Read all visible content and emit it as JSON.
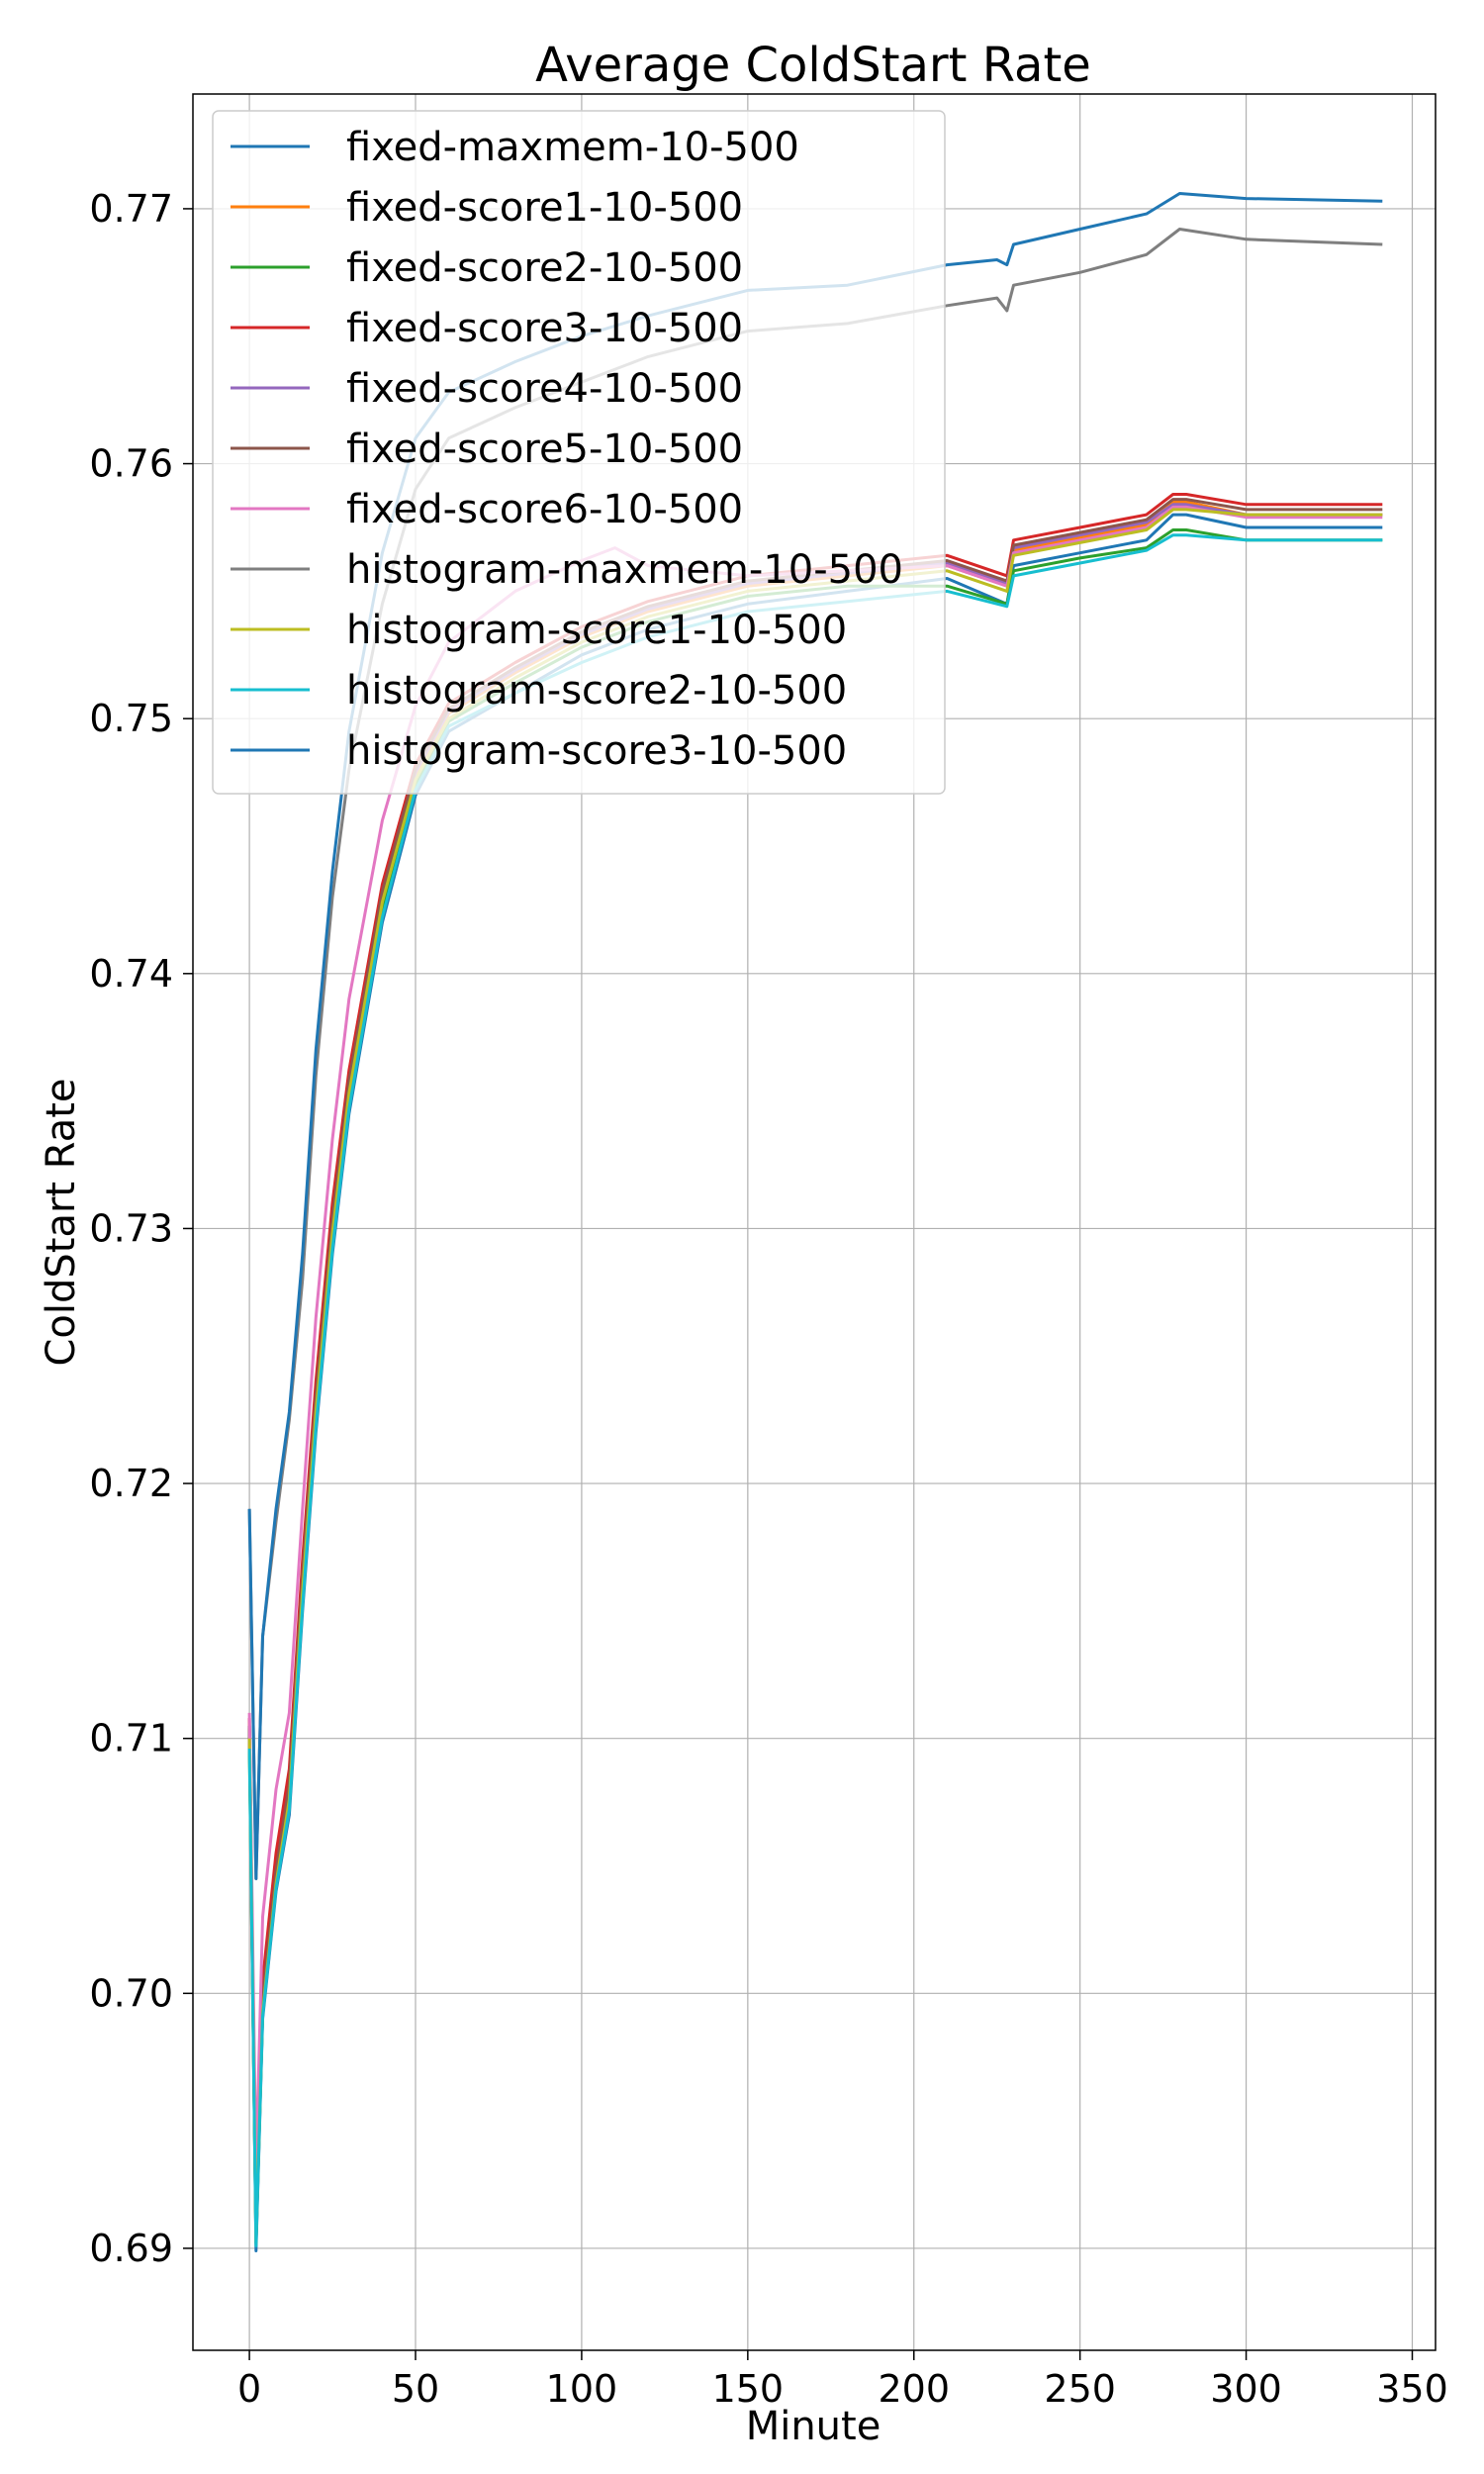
{
  "chart_data": {
    "type": "line",
    "title": "Average ColdStart Rate",
    "xlabel": "Minute",
    "ylabel": "ColdStart Rate",
    "xlim": [
      -17,
      357
    ],
    "ylim": [
      0.686,
      0.7745
    ],
    "xticks": [
      0,
      50,
      100,
      150,
      200,
      250,
      300,
      350
    ],
    "xtick_labels": [
      "0",
      "50",
      "100",
      "150",
      "200",
      "250",
      "300",
      "350"
    ],
    "yticks": [
      0.69,
      0.7,
      0.71,
      0.72,
      0.73,
      0.74,
      0.75,
      0.76,
      0.77
    ],
    "ytick_labels": [
      "0.69",
      "0.70",
      "0.71",
      "0.72",
      "0.73",
      "0.74",
      "0.75",
      "0.76",
      "0.77"
    ],
    "grid": true,
    "legend_position": "upper-left",
    "series": [
      {
        "name": "fixed-maxmem-10-500",
        "color": "#1f77b4",
        "x": [
          0,
          2,
          4,
          8,
          12,
          16,
          20,
          25,
          30,
          40,
          50,
          60,
          80,
          100,
          120,
          150,
          180,
          210,
          228,
          230,
          250,
          270,
          278,
          282,
          300,
          341
        ],
        "y": [
          0.7105,
          0.6899,
          0.699,
          0.704,
          0.707,
          0.715,
          0.722,
          0.729,
          0.7345,
          0.742,
          0.747,
          0.7495,
          0.751,
          0.7525,
          0.7535,
          0.7545,
          0.755,
          0.7555,
          0.7545,
          0.756,
          0.7565,
          0.757,
          0.758,
          0.758,
          0.7575,
          0.7575
        ]
      },
      {
        "name": "fixed-score1-10-500",
        "color": "#ff7f0e",
        "x": [
          0,
          2,
          4,
          8,
          12,
          16,
          20,
          25,
          30,
          40,
          50,
          60,
          80,
          100,
          120,
          150,
          180,
          210,
          228,
          230,
          250,
          270,
          278,
          282,
          300,
          341
        ],
        "y": [
          0.71,
          0.6905,
          0.6995,
          0.7045,
          0.7078,
          0.716,
          0.723,
          0.73,
          0.7355,
          0.743,
          0.7478,
          0.7502,
          0.7518,
          0.7532,
          0.7542,
          0.7552,
          0.7556,
          0.756,
          0.7552,
          0.7566,
          0.7571,
          0.7576,
          0.7585,
          0.7585,
          0.758,
          0.758
        ]
      },
      {
        "name": "fixed-score2-10-500",
        "color": "#2ca02c",
        "x": [
          0,
          2,
          4,
          8,
          12,
          16,
          20,
          25,
          30,
          40,
          50,
          60,
          80,
          100,
          120,
          150,
          180,
          210,
          228,
          230,
          250,
          270,
          278,
          282,
          300,
          341
        ],
        "y": [
          0.7095,
          0.6902,
          0.6992,
          0.7042,
          0.7074,
          0.7155,
          0.7225,
          0.7295,
          0.735,
          0.7425,
          0.7474,
          0.7499,
          0.7514,
          0.7528,
          0.7538,
          0.7548,
          0.7552,
          0.7552,
          0.7545,
          0.7558,
          0.7563,
          0.7567,
          0.7574,
          0.7574,
          0.757,
          0.757
        ]
      },
      {
        "name": "fixed-score3-10-500",
        "color": "#d62728",
        "x": [
          0,
          2,
          4,
          8,
          12,
          16,
          20,
          25,
          30,
          40,
          50,
          60,
          80,
          100,
          120,
          150,
          180,
          210,
          228,
          230,
          250,
          270,
          278,
          282,
          300,
          341
        ],
        "y": [
          0.7108,
          0.691,
          0.7005,
          0.7055,
          0.7088,
          0.717,
          0.724,
          0.731,
          0.7362,
          0.7435,
          0.7482,
          0.7506,
          0.7522,
          0.7536,
          0.7546,
          0.7556,
          0.756,
          0.7564,
          0.7556,
          0.757,
          0.7575,
          0.758,
          0.7588,
          0.7588,
          0.7584,
          0.7584
        ]
      },
      {
        "name": "fixed-score4-10-500",
        "color": "#9467bd",
        "x": [
          0,
          2,
          4,
          8,
          12,
          16,
          20,
          25,
          30,
          40,
          50,
          60,
          80,
          100,
          120,
          150,
          180,
          210,
          228,
          230,
          250,
          270,
          278,
          282,
          300,
          341
        ],
        "y": [
          0.7102,
          0.6904,
          0.6996,
          0.7046,
          0.7079,
          0.7161,
          0.7231,
          0.7301,
          0.7356,
          0.7431,
          0.7479,
          0.7503,
          0.7519,
          0.7533,
          0.7543,
          0.7553,
          0.7557,
          0.7561,
          0.7553,
          0.7567,
          0.7572,
          0.7577,
          0.7584,
          0.7584,
          0.758,
          0.758
        ]
      },
      {
        "name": "fixed-score5-10-500",
        "color": "#8c564b",
        "x": [
          0,
          2,
          4,
          8,
          12,
          16,
          20,
          25,
          30,
          40,
          50,
          60,
          80,
          100,
          120,
          150,
          180,
          210,
          228,
          230,
          250,
          270,
          278,
          282,
          300,
          341
        ],
        "y": [
          0.7104,
          0.6906,
          0.6998,
          0.7048,
          0.7082,
          0.7164,
          0.7234,
          0.7304,
          0.7358,
          0.7432,
          0.748,
          0.7504,
          0.752,
          0.7534,
          0.7544,
          0.7554,
          0.7558,
          0.7562,
          0.7554,
          0.7568,
          0.7573,
          0.7578,
          0.7586,
          0.7586,
          0.7582,
          0.7582
        ]
      },
      {
        "name": "fixed-score6-10-500",
        "color": "#e377c2",
        "x": [
          0,
          2,
          4,
          8,
          12,
          16,
          20,
          25,
          30,
          40,
          50,
          60,
          80,
          100,
          110,
          120,
          150,
          180,
          210,
          228,
          230,
          250,
          270,
          278,
          282,
          300,
          341
        ],
        "y": [
          0.711,
          0.693,
          0.703,
          0.708,
          0.711,
          0.719,
          0.7265,
          0.7335,
          0.739,
          0.746,
          0.7505,
          0.753,
          0.755,
          0.7562,
          0.7567,
          0.756,
          0.7556,
          0.7558,
          0.756,
          0.7552,
          0.7565,
          0.757,
          0.7575,
          0.7583,
          0.7583,
          0.7579,
          0.7579
        ]
      },
      {
        "name": "histogram-maxmem-10-500",
        "color": "#7f7f7f",
        "x": [
          0,
          2,
          4,
          8,
          12,
          16,
          20,
          25,
          30,
          40,
          50,
          60,
          80,
          100,
          120,
          150,
          180,
          210,
          225,
          228,
          230,
          250,
          270,
          280,
          300,
          341
        ],
        "y": [
          0.719,
          0.7045,
          0.714,
          0.7185,
          0.7225,
          0.728,
          0.736,
          0.743,
          0.748,
          0.7545,
          0.759,
          0.761,
          0.7622,
          0.7632,
          0.7642,
          0.7652,
          0.7655,
          0.7662,
          0.7665,
          0.766,
          0.767,
          0.7675,
          0.7682,
          0.7692,
          0.7688,
          0.7686
        ]
      },
      {
        "name": "histogram-score1-10-500",
        "color": "#bcbd22",
        "x": [
          0,
          2,
          4,
          8,
          12,
          16,
          20,
          25,
          30,
          40,
          50,
          60,
          80,
          100,
          120,
          150,
          180,
          210,
          228,
          230,
          250,
          270,
          278,
          282,
          300,
          341
        ],
        "y": [
          0.71,
          0.6903,
          0.6993,
          0.7043,
          0.7076,
          0.7158,
          0.7228,
          0.7298,
          0.7353,
          0.7428,
          0.7476,
          0.75,
          0.7516,
          0.753,
          0.754,
          0.755,
          0.7554,
          0.7558,
          0.755,
          0.7564,
          0.7569,
          0.7574,
          0.7582,
          0.7582,
          0.758,
          0.758
        ]
      },
      {
        "name": "histogram-score2-10-500",
        "color": "#17becf",
        "x": [
          0,
          2,
          4,
          8,
          12,
          16,
          20,
          25,
          30,
          40,
          50,
          60,
          80,
          100,
          120,
          150,
          180,
          210,
          228,
          230,
          250,
          270,
          278,
          282,
          300,
          341
        ],
        "y": [
          0.7096,
          0.6901,
          0.6991,
          0.7041,
          0.7072,
          0.7152,
          0.7222,
          0.7292,
          0.7347,
          0.7422,
          0.7472,
          0.7497,
          0.751,
          0.7522,
          0.7532,
          0.7542,
          0.7546,
          0.755,
          0.7544,
          0.7556,
          0.7561,
          0.7566,
          0.7572,
          0.7572,
          0.757,
          0.757
        ]
      },
      {
        "name": "histogram-score3-10-500",
        "color": "#1f77b4",
        "x": [
          0,
          2,
          4,
          8,
          12,
          16,
          20,
          25,
          30,
          40,
          50,
          60,
          80,
          100,
          120,
          150,
          180,
          210,
          225,
          228,
          230,
          250,
          270,
          280,
          300,
          341
        ],
        "y": [
          0.719,
          0.7045,
          0.714,
          0.719,
          0.7228,
          0.729,
          0.737,
          0.744,
          0.7495,
          0.7565,
          0.761,
          0.7628,
          0.764,
          0.765,
          0.7658,
          0.7668,
          0.767,
          0.7678,
          0.768,
          0.7678,
          0.7686,
          0.7692,
          0.7698,
          0.7706,
          0.7704,
          0.7703
        ]
      }
    ]
  }
}
